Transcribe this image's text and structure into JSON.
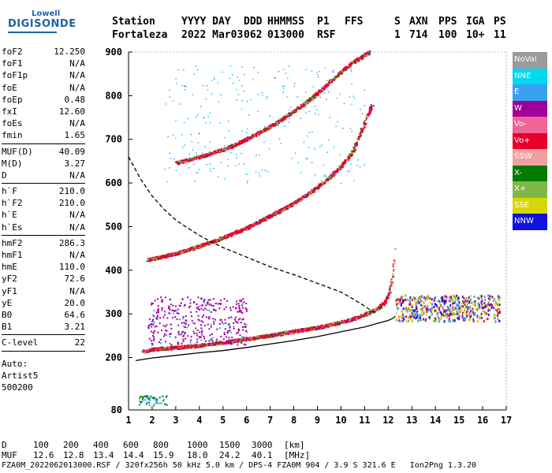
{
  "logo": {
    "line1": "Lowell",
    "line2": "DIGISONDE"
  },
  "header": {
    "labels": [
      "Station",
      "YYYY DAY",
      "DDD",
      "HHMMSS",
      "P1",
      "FFS",
      "S",
      "AXN",
      "PPS",
      "IGA",
      "PS"
    ],
    "values": [
      "Fortaleza",
      "2022 Mar03",
      "062",
      "013000",
      "RSF",
      "1",
      "714",
      "100",
      "10+",
      "11"
    ]
  },
  "parameters": [
    {
      "name": "foF2",
      "value": "12.250"
    },
    {
      "name": "foF1",
      "value": "N/A"
    },
    {
      "name": "foF1p",
      "value": "N/A"
    },
    {
      "name": "foE",
      "value": "N/A"
    },
    {
      "name": "foEp",
      "value": "0.48"
    },
    {
      "name": "fxI",
      "value": "12.60"
    },
    {
      "name": "foEs",
      "value": "N/A"
    },
    {
      "name": "fmin",
      "value": "1.65"
    },
    {
      "sep": true
    },
    {
      "name": "MUF(D)",
      "value": "40.09"
    },
    {
      "name": "M(D)",
      "value": "3.27"
    },
    {
      "name": "D",
      "value": "N/A"
    },
    {
      "sep": true
    },
    {
      "name": "h`F",
      "value": "210.0"
    },
    {
      "name": "h`F2",
      "value": "210.0"
    },
    {
      "name": "h`E",
      "value": "N/A"
    },
    {
      "name": "h`Es",
      "value": "N/A"
    },
    {
      "sep": true
    },
    {
      "name": "hmF2",
      "value": "286.3"
    },
    {
      "name": "hmF1",
      "value": "N/A"
    },
    {
      "name": "hmE",
      "value": "110.0"
    },
    {
      "name": "yF2",
      "value": "72.6"
    },
    {
      "name": "yF1",
      "value": "N/A"
    },
    {
      "name": "yE",
      "value": "20.0"
    },
    {
      "name": "B0",
      "value": "64.6"
    },
    {
      "name": "B1",
      "value": "3.21"
    },
    {
      "sep": true
    },
    {
      "name": "C-level",
      "value": "22"
    },
    {
      "sep": true
    }
  ],
  "scaling": {
    "label": "Auto:",
    "software": "Artist5",
    "version": "500200"
  },
  "legend": [
    {
      "label": "NoVal",
      "color": "#9a9a9a"
    },
    {
      "label": "NNE",
      "color": "#00d8f0"
    },
    {
      "label": "E",
      "color": "#3ca0f0"
    },
    {
      "label": "W",
      "color": "#a0009a"
    },
    {
      "label": "Vo-",
      "color": "#f06496"
    },
    {
      "label": "Vo+",
      "color": "#e8002a"
    },
    {
      "label": "SSW",
      "color": "#f0a0a0"
    },
    {
      "label": "X-",
      "color": "#007a00"
    },
    {
      "label": "X+",
      "color": "#80b848"
    },
    {
      "label": "SSE",
      "color": "#d8d800"
    },
    {
      "label": "NNW",
      "color": "#1010e0"
    }
  ],
  "footer": {
    "d_label": "D",
    "d_values": [
      "100",
      "200",
      "400",
      "600",
      "800",
      "1000",
      "1500",
      "3000"
    ],
    "d_unit": "[km]",
    "muf_label": "MUF",
    "muf_values": [
      "12.6",
      "12.8",
      "13.4",
      "14.4",
      "15.9",
      "18.0",
      "24.2",
      "40.1"
    ],
    "muf_unit": "[MHz]",
    "file_line": "FZA0M_2022062013000.RSF / 320fx256h 50 kHz 5.0 km / DPS-4 FZA0M 904 / 3.9 S 321.6 E   Ion2Png 1.3.20"
  },
  "chart_data": {
    "type": "scatter",
    "xlim": [
      1,
      17
    ],
    "ylim": [
      80,
      900
    ],
    "x_ticks": [
      1,
      2,
      3,
      4,
      5,
      6,
      7,
      8,
      9,
      10,
      11,
      12,
      13,
      14,
      15,
      16,
      17
    ],
    "y_ticks": [
      80,
      200,
      300,
      400,
      500,
      600,
      700,
      800,
      900
    ],
    "grid": false,
    "legend_position": "right",
    "series": [
      {
        "name": "Vo+",
        "color": "#e8002a",
        "style": "dots",
        "x": [
          1.6,
          2,
          3,
          4,
          5,
          6,
          7,
          8,
          9,
          10,
          10.5,
          11,
          11.5,
          11.8,
          12,
          12.15,
          12.25
        ],
        "y": [
          215,
          220,
          224,
          229,
          236,
          244,
          252,
          261,
          270,
          282,
          290,
          300,
          312,
          326,
          345,
          380,
          450
        ]
      },
      {
        "name": "Vo+",
        "color": "#e8002a",
        "style": "dots",
        "x": [
          1.8,
          2.5,
          3,
          3.5,
          4,
          4.5,
          5,
          5.5,
          6,
          6.5,
          7,
          7.5,
          8,
          8.5,
          9,
          9.5,
          10,
          10.5,
          11,
          11.3
        ],
        "y": [
          425,
          433,
          440,
          448,
          457,
          466,
          476,
          487,
          499,
          512,
          526,
          540,
          556,
          573,
          592,
          614,
          640,
          675,
          740,
          780
        ]
      },
      {
        "name": "Vo+",
        "color": "#e8002a",
        "style": "dots",
        "x": [
          3,
          3.5,
          4,
          4.5,
          5,
          5.5,
          6,
          6.5,
          7,
          7.5,
          8,
          8.5,
          9,
          9.5,
          10,
          10.5,
          11,
          11.2
        ],
        "y": [
          647,
          654,
          661,
          669,
          678,
          689,
          702,
          716,
          731,
          748,
          766,
          786,
          808,
          832,
          856,
          878,
          895,
          900
        ]
      },
      {
        "name": "trace",
        "color": "#000000",
        "style": "solid",
        "x": [
          1.3,
          2,
          3,
          4,
          5,
          6,
          7,
          8,
          9,
          10,
          11,
          11.6,
          12,
          12.2,
          12.3
        ],
        "y": [
          193,
          199,
          205,
          211,
          216,
          223,
          231,
          239,
          248,
          259,
          270,
          279,
          285,
          290,
          295
        ]
      },
      {
        "name": "profile",
        "color": "#000000",
        "style": "dashed",
        "x": [
          1.0,
          1.5,
          2,
          2.5,
          3,
          3.5,
          4,
          4.5,
          5,
          6,
          7,
          8,
          9,
          10,
          10.8,
          11.5
        ],
        "y": [
          660,
          610,
          570,
          540,
          515,
          497,
          480,
          465,
          452,
          430,
          408,
          390,
          370,
          350,
          325,
          300
        ]
      }
    ]
  }
}
